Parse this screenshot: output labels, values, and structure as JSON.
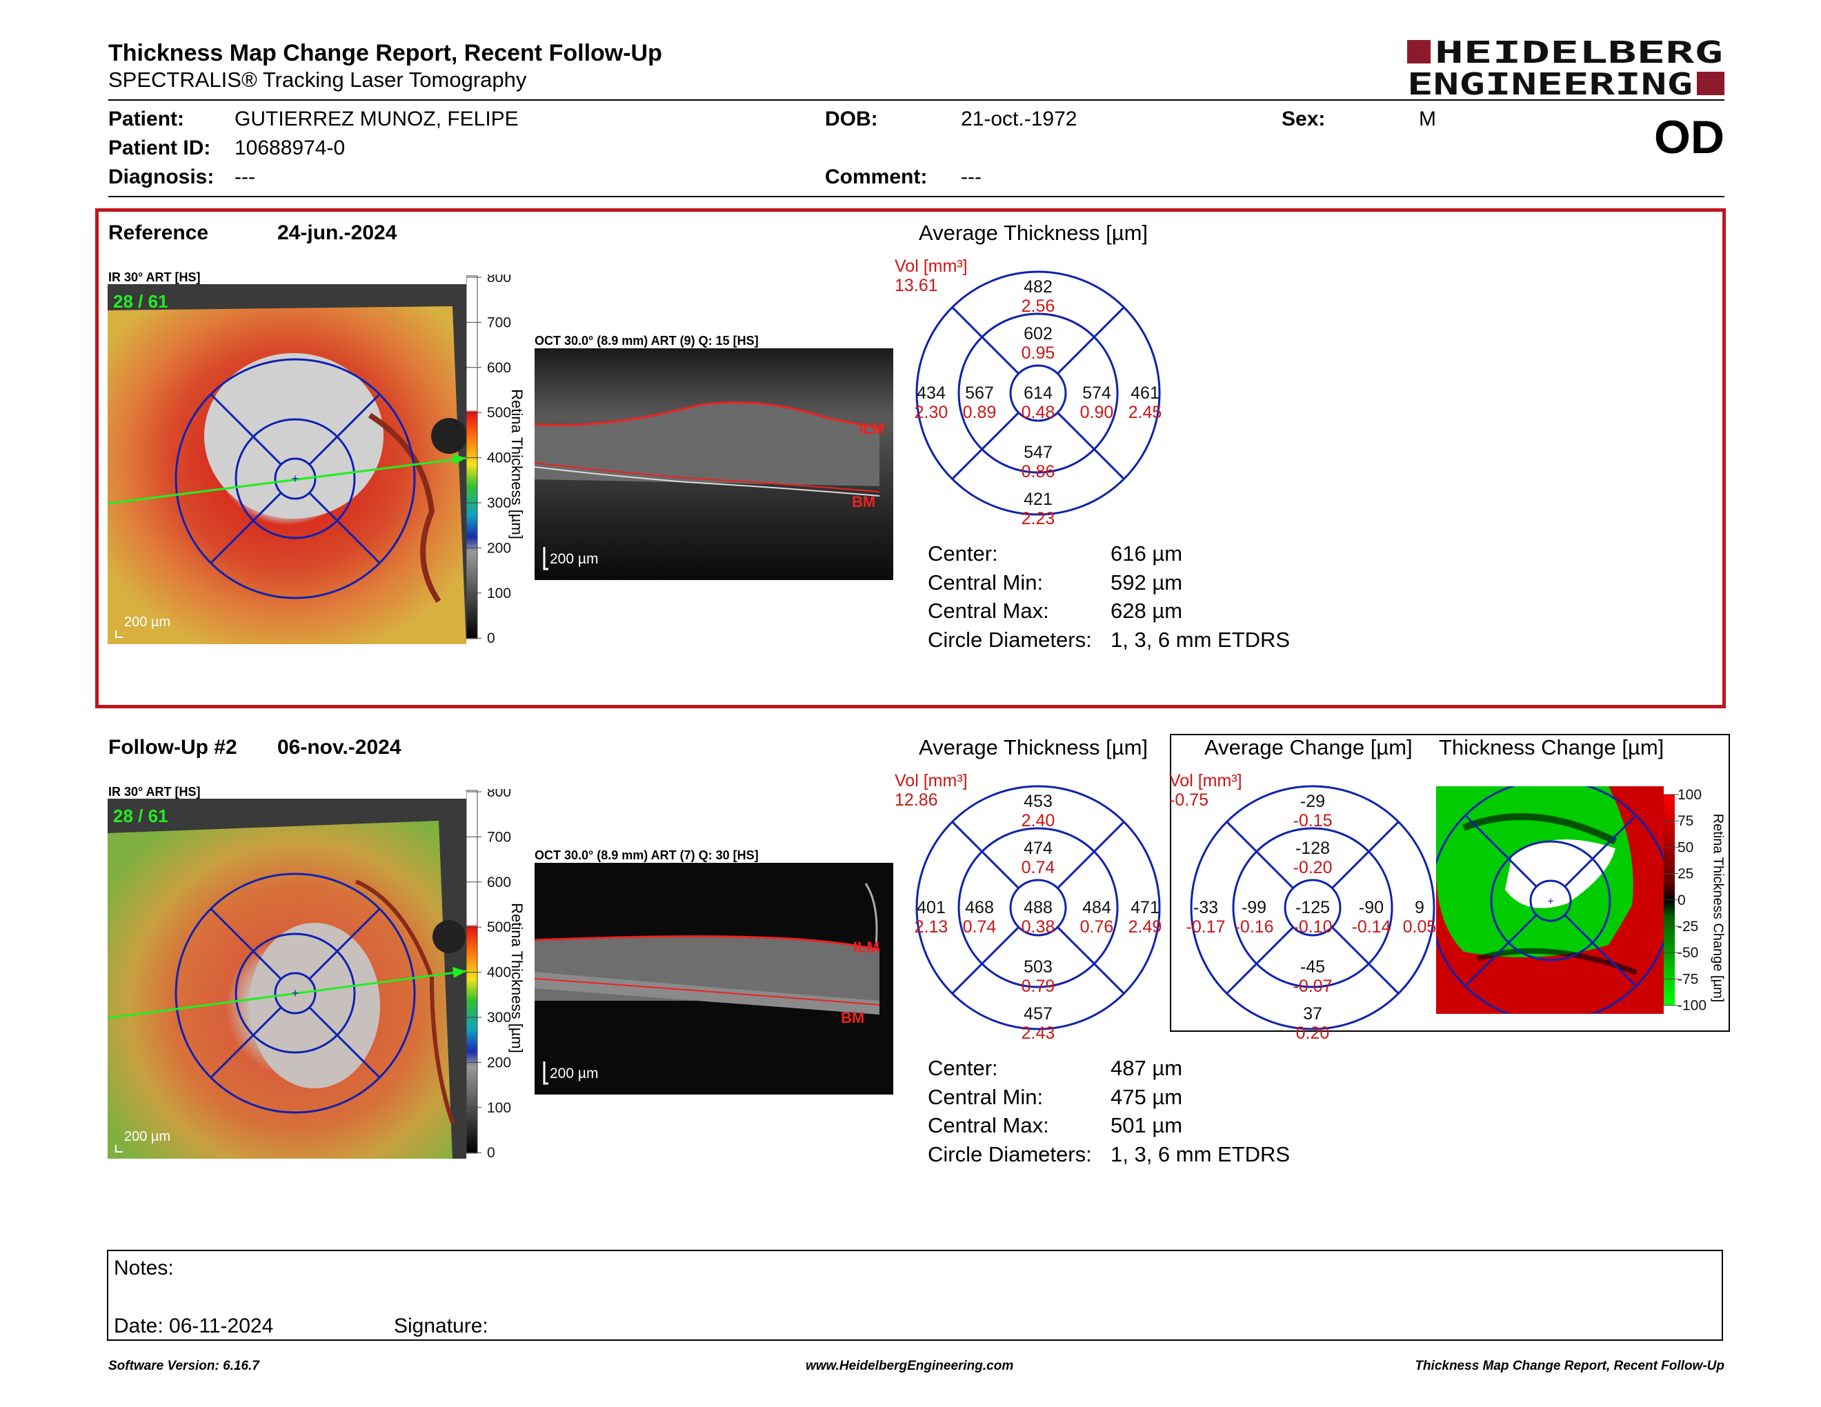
{
  "header": {
    "title": "Thickness Map Change Report, Recent Follow-Up",
    "subtitle": "SPECTRALIS® Tracking Laser Tomography",
    "logo_line1": "HEIDELBERG",
    "logo_line2": "ENGINEERING",
    "eye": "OD"
  },
  "patient": {
    "patient_label": "Patient:",
    "patient_value": "GUTIERREZ MUNOZ, FELIPE",
    "id_label": "Patient ID:",
    "id_value": "10688974-0",
    "diag_label": "Diagnosis:",
    "diag_value": "---",
    "dob_label": "DOB:",
    "dob_value": "21-oct.-1972",
    "comment_label": "Comment:",
    "comment_value": "---",
    "sex_label": "Sex:",
    "sex_value": "M"
  },
  "reference": {
    "label": "Reference",
    "date": "24-jun.-2024",
    "ir_label": "IR 30° ART [HS]",
    "counter": "28 / 61",
    "scale": "200 µm",
    "oct_label": "OCT 30.0° (8.9 mm) ART (9) Q: 15 [HS]",
    "oct_scale": "200 µm",
    "ilm": "ILM",
    "bm": "BM",
    "colorbar_ticks": [
      "800",
      "700",
      "600",
      "500",
      "400",
      "300",
      "200",
      "100",
      "0"
    ],
    "colorbar_title": "Retina Thickness [µm]",
    "avg_title": "Average Thickness [µm]",
    "vol_label": "Vol [mm³]",
    "vol_value": "13.61",
    "sectors": {
      "outer_top": {
        "t": "482",
        "v": "2.56"
      },
      "inner_top": {
        "t": "602",
        "v": "0.95"
      },
      "outer_left": {
        "t": "434",
        "v": "2.30"
      },
      "inner_left": {
        "t": "567",
        "v": "0.89"
      },
      "center": {
        "t": "614",
        "v": "0.48"
      },
      "inner_right": {
        "t": "574",
        "v": "0.90"
      },
      "outer_right": {
        "t": "461",
        "v": "2.45"
      },
      "inner_bottom": {
        "t": "547",
        "v": "0.86"
      },
      "outer_bottom": {
        "t": "421",
        "v": "2.23"
      }
    },
    "stats": [
      {
        "k": "Center:",
        "v": "616 µm"
      },
      {
        "k": "Central Min:",
        "v": "592 µm"
      },
      {
        "k": "Central Max:",
        "v": "628 µm"
      },
      {
        "k": "Circle Diameters:",
        "v": "1, 3, 6 mm ETDRS"
      }
    ]
  },
  "followup": {
    "label": "Follow-Up #2",
    "date": "06-nov.-2024",
    "ir_label": "IR 30° ART [HS]",
    "counter": "28 / 61",
    "scale": "200 µm",
    "oct_label": "OCT 30.0° (8.9 mm) ART (7) Q: 30 [HS]",
    "oct_scale": "200 µm",
    "ilm": "ILM",
    "bm": "BM",
    "colorbar_ticks": [
      "800",
      "700",
      "600",
      "500",
      "400",
      "300",
      "200",
      "100",
      "0"
    ],
    "colorbar_title": "Retina Thickness [µm]",
    "avg_title": "Average Thickness [µm]",
    "vol_label": "Vol [mm³]",
    "vol_value": "12.86",
    "sectors": {
      "outer_top": {
        "t": "453",
        "v": "2.40"
      },
      "inner_top": {
        "t": "474",
        "v": "0.74"
      },
      "outer_left": {
        "t": "401",
        "v": "2.13"
      },
      "inner_left": {
        "t": "468",
        "v": "0.74"
      },
      "center": {
        "t": "488",
        "v": "0.38"
      },
      "inner_right": {
        "t": "484",
        "v": "0.76"
      },
      "outer_right": {
        "t": "471",
        "v": "2.49"
      },
      "inner_bottom": {
        "t": "503",
        "v": "0.79"
      },
      "outer_bottom": {
        "t": "457",
        "v": "2.43"
      }
    },
    "stats": [
      {
        "k": "Center:",
        "v": "487 µm"
      },
      {
        "k": "Central Min:",
        "v": "475 µm"
      },
      {
        "k": "Central Max:",
        "v": "501 µm"
      },
      {
        "k": "Circle Diameters:",
        "v": "1, 3, 6 mm ETDRS"
      }
    ],
    "change_title": "Average Change [µm]",
    "change_vol_label": "Vol [mm³]",
    "change_vol_value": "-0.75",
    "change_sectors": {
      "outer_top": {
        "t": "-29",
        "v": "-0.15"
      },
      "inner_top": {
        "t": "-128",
        "v": "-0.20"
      },
      "outer_left": {
        "t": "-33",
        "v": "-0.17"
      },
      "inner_left": {
        "t": "-99",
        "v": "-0.16"
      },
      "center": {
        "t": "-125",
        "v": "-0.10"
      },
      "inner_right": {
        "t": "-90",
        "v": "-0.14"
      },
      "outer_right": {
        "t": "9",
        "v": "0.05"
      },
      "inner_bottom": {
        "t": "-45",
        "v": "-0.07"
      },
      "outer_bottom": {
        "t": "37",
        "v": "0.20"
      }
    },
    "thickness_change_title": "Thickness Change [µm]",
    "change_ticks": [
      "100",
      "75",
      "50",
      "25",
      "0",
      "-25",
      "-50",
      "-75",
      "-100"
    ],
    "change_bar_title": "Retina Thickness Change [µm]"
  },
  "notes": {
    "notes_label": "Notes:",
    "date_label": "Date: 06-11-2024",
    "signature_label": "Signature:"
  },
  "footer": {
    "left": "Software Version: 6.16.7",
    "center": "www.HeidelbergEngineering.com",
    "right": "Thickness Map Change Report, Recent Follow-Up"
  },
  "colors": {
    "accent_red": "#c0141c",
    "brand": "#8c1a2a",
    "grid_blue": "#0f22b0",
    "value_red": "#cc1515"
  }
}
